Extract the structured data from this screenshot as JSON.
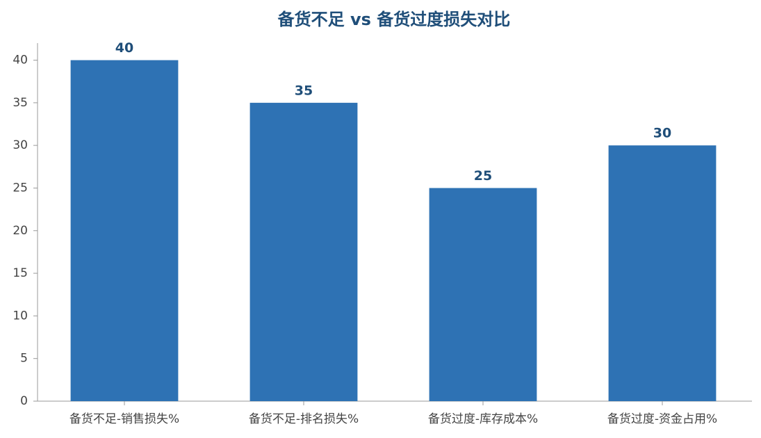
{
  "chart_data": {
    "type": "bar",
    "title": "备货不足 vs 备货过度损失对比",
    "categories": [
      "备货不足-销售损失%",
      "备货不足-排名损失%",
      "备货过度-库存成本%",
      "备货过度-资金占用%"
    ],
    "values": [
      40,
      35,
      25,
      30
    ],
    "color": "#2e72b4",
    "ylim": [
      0,
      42
    ],
    "yticks": [
      0,
      5,
      10,
      15,
      20,
      25,
      30,
      35,
      40
    ],
    "grid": false
  }
}
